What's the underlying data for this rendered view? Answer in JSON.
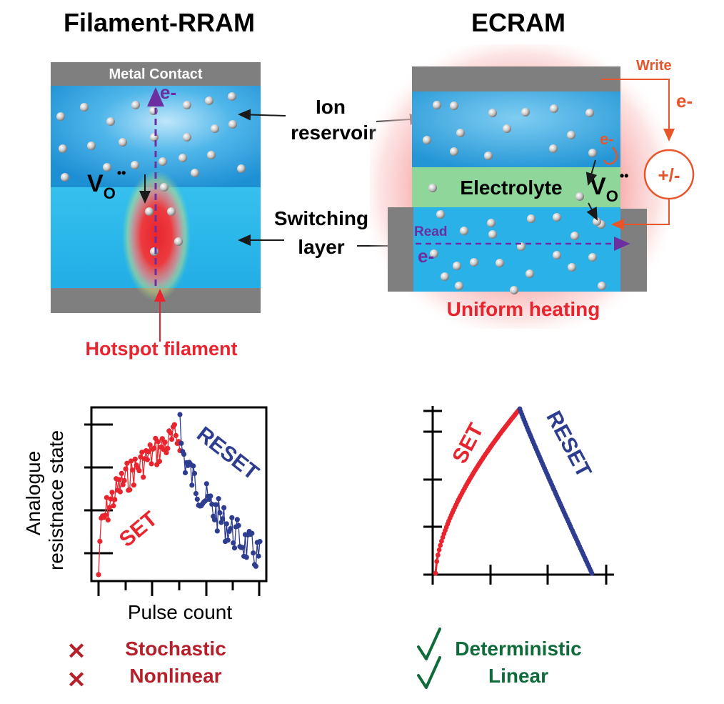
{
  "rram": {
    "title": "Filament-RRAM",
    "metal_contact": "Metal Contact",
    "electron": "e-",
    "vo_main": "V",
    "vo_sub": "O",
    "vo_sup": "••",
    "hotspot_label": "Hotspot filament"
  },
  "center_labels": {
    "ion_reservoir_line1": "Ion",
    "ion_reservoir_line2": "reservoir",
    "switching_line1": "Switching",
    "switching_line2": "layer"
  },
  "ecram": {
    "title": "ECRAM",
    "write_label": "Write",
    "electron_write": "e-",
    "electron_small": "e-",
    "source_symbol": "+/-",
    "electrolyte_label": "Electrolyte",
    "vo_main": "V",
    "vo_sub": "O",
    "vo_sup": "••",
    "read_label": "Read",
    "electron_read": "e-",
    "heating_label": "Uniform heating"
  },
  "colors": {
    "red": "#e8252e",
    "blue": "#2e3d8f",
    "orange": "#e8552a",
    "purple": "#6b2fa0",
    "green_text": "#0f6b3a",
    "layer_blue": "#2aa9e0",
    "electrolyte": "#8fd69a",
    "contact": "#7f7f7f"
  },
  "chart_data": [
    {
      "type": "line",
      "xlabel": "Pulse count",
      "ylabel_line1": "Analogue",
      "ylabel_line2": "resistnace state",
      "series": [
        {
          "name": "SET",
          "color": "#e8252e",
          "x_range": [
            0,
            58
          ],
          "behavior": "stochastic nonlinear rise"
        },
        {
          "name": "RESET",
          "color": "#2e3d8f",
          "x_range": [
            58,
            112
          ],
          "behavior": "stochastic nonlinear fall"
        }
      ]
    },
    {
      "type": "line",
      "xlabel": "",
      "series": [
        {
          "name": "SET",
          "color": "#e8252e",
          "behavior": "deterministic concave rise"
        },
        {
          "name": "RESET",
          "color": "#2e3d8f",
          "behavior": "deterministic linear fall"
        }
      ]
    }
  ],
  "verdicts": {
    "left": [
      {
        "mark": "✕",
        "text": "Stochastic"
      },
      {
        "mark": "✕",
        "text": "Nonlinear"
      }
    ],
    "right": [
      {
        "mark": "✓",
        "text": "Deterministic"
      },
      {
        "mark": "",
        "text": "Linear"
      }
    ]
  }
}
